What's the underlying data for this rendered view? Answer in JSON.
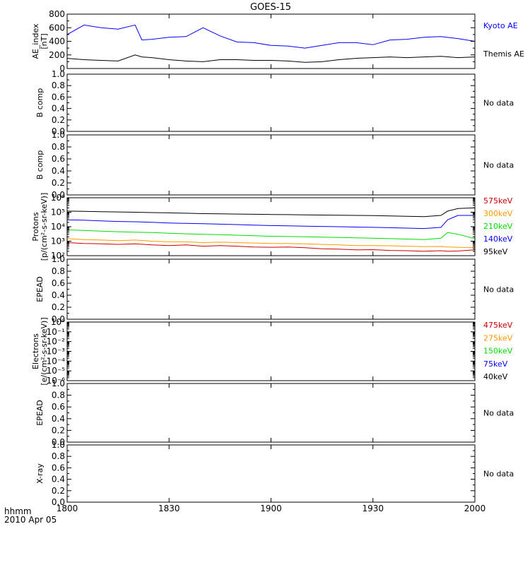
{
  "title": "GOES-15",
  "footer": {
    "time_label": "hhmm",
    "date_label": "2010 Apr 05"
  },
  "colors": {
    "kyoto_ae": "#0000ff",
    "themis_ae": "#000000",
    "p575": "#cc0000",
    "p300": "#ff9900",
    "p210": "#00dd00",
    "p140": "#0000ff",
    "p95": "#000000"
  },
  "chart_data": [
    {
      "type": "line",
      "ylabel": [
        "AE_index",
        "[nT]"
      ],
      "ylim": [
        0,
        800
      ],
      "yticks": [
        "800",
        "600",
        "400",
        "200",
        "0"
      ],
      "x": [
        "1800",
        "1805",
        "1810",
        "1815",
        "1820",
        "1822",
        "1825",
        "1830",
        "1835",
        "1840",
        "1845",
        "1850",
        "1855",
        "1900",
        "1905",
        "1910",
        "1915",
        "1920",
        "1925",
        "1930",
        "1935",
        "1940",
        "1945",
        "1950",
        "1955",
        "2000"
      ],
      "series": [
        {
          "name": "Kyoto AE",
          "color": "#0000ff",
          "values": [
            500,
            640,
            600,
            580,
            640,
            420,
            430,
            460,
            470,
            600,
            480,
            390,
            380,
            340,
            330,
            300,
            340,
            380,
            380,
            350,
            420,
            430,
            460,
            470,
            440,
            400
          ]
        },
        {
          "name": "Themis AE",
          "color": "#000000",
          "values": [
            150,
            130,
            120,
            110,
            200,
            170,
            160,
            130,
            110,
            100,
            130,
            130,
            120,
            120,
            110,
            90,
            100,
            130,
            150,
            160,
            170,
            160,
            170,
            180,
            160,
            170
          ]
        }
      ]
    },
    {
      "type": "line",
      "ylabel": [
        "B comp"
      ],
      "ylim": [
        0,
        1.0
      ],
      "yticks": [
        "1.0",
        "0.8",
        "0.6",
        "0.4",
        "0.2",
        "0.0"
      ],
      "note": "No data"
    },
    {
      "type": "line",
      "ylabel": [
        "B comp"
      ],
      "ylim": [
        0,
        1.0
      ],
      "yticks": [
        "1.0",
        "0.8",
        "0.6",
        "0.4",
        "0.2",
        "0.0"
      ],
      "note": "No data"
    },
    {
      "type": "line",
      "ylabel": [
        "Protons",
        "[p/(cm²-s-sr-keV)]"
      ],
      "ylim": [
        100,
        1000000
      ],
      "log": true,
      "yticks": [
        "10⁶",
        "10⁵",
        "10⁴",
        "10³",
        "10²"
      ],
      "x": [
        "1800",
        "1805",
        "1810",
        "1815",
        "1820",
        "1825",
        "1830",
        "1835",
        "1840",
        "1845",
        "1850",
        "1855",
        "1900",
        "1905",
        "1910",
        "1915",
        "1920",
        "1925",
        "1930",
        "1935",
        "1940",
        "1945",
        "1950",
        "1952",
        "1955",
        "2000"
      ],
      "series": [
        {
          "name": "575keV",
          "color": "#cc0000",
          "values": [
            800,
            700,
            650,
            600,
            650,
            550,
            500,
            550,
            450,
            500,
            450,
            400,
            380,
            400,
            350,
            300,
            280,
            250,
            260,
            230,
            220,
            200,
            220,
            200,
            210,
            250
          ]
        },
        {
          "name": "300keV",
          "color": "#ff9900",
          "values": [
            1500,
            1300,
            1200,
            1100,
            1200,
            1000,
            900,
            900,
            800,
            850,
            800,
            750,
            700,
            700,
            650,
            600,
            550,
            500,
            500,
            480,
            450,
            420,
            430,
            400,
            380,
            350
          ]
        },
        {
          "name": "210keV",
          "color": "#00dd00",
          "values": [
            6000,
            5500,
            5000,
            4500,
            4200,
            4000,
            3500,
            3200,
            3000,
            2800,
            2600,
            2400,
            2200,
            2100,
            2000,
            1900,
            1800,
            1700,
            1600,
            1500,
            1400,
            1300,
            1600,
            4000,
            3000,
            1500
          ]
        },
        {
          "name": "140keV",
          "color": "#0000ff",
          "values": [
            30000,
            28000,
            25000,
            23000,
            22000,
            20000,
            18000,
            17000,
            16000,
            15000,
            14000,
            13000,
            12000,
            11500,
            11000,
            10500,
            10000,
            9500,
            9000,
            8500,
            8000,
            7500,
            9000,
            30000,
            60000,
            60000
          ]
        },
        {
          "name": "95keV",
          "color": "#000000",
          "values": [
            120000,
            115000,
            110000,
            105000,
            100000,
            95000,
            90000,
            85000,
            80000,
            78000,
            75000,
            72000,
            70000,
            68000,
            66000,
            64000,
            62000,
            60000,
            58000,
            55000,
            52000,
            50000,
            60000,
            120000,
            180000,
            200000
          ]
        }
      ]
    },
    {
      "type": "line",
      "ylabel": [
        "EPEAD"
      ],
      "ylim": [
        0,
        1.0
      ],
      "yticks": [
        "1.0",
        "0.8",
        "0.6",
        "0.4",
        "0.2",
        "0.0"
      ],
      "note": "No data"
    },
    {
      "type": "line",
      "ylabel": [
        "Electrons",
        "[e/(cm²-s-sr-keV)]"
      ],
      "ylim": [
        1e-06,
        1
      ],
      "log": true,
      "yticks": [
        "10⁰",
        "10⁻¹",
        "10⁻²",
        "10⁻³",
        "10⁻⁴",
        "10⁻⁵",
        "10⁻⁶"
      ],
      "series": [
        {
          "name": "475keV",
          "color": "#cc0000",
          "values": []
        },
        {
          "name": "275keV",
          "color": "#ff9900",
          "values": []
        },
        {
          "name": "150keV",
          "color": "#00dd00",
          "values": []
        },
        {
          "name": "75keV",
          "color": "#0000ff",
          "values": []
        },
        {
          "name": "40keV",
          "color": "#000000",
          "values": []
        }
      ]
    },
    {
      "type": "line",
      "ylabel": [
        "EPEAD"
      ],
      "ylim": [
        0,
        1.0
      ],
      "yticks": [
        "1.0",
        "0.8",
        "0.6",
        "0.4",
        "0.2",
        "0.0"
      ],
      "note": "No data"
    },
    {
      "type": "line",
      "ylabel": [
        "X-ray"
      ],
      "ylim": [
        0,
        1.0
      ],
      "yticks": [
        "1.0",
        "0.8",
        "0.6",
        "0.4",
        "0.2",
        "0.0"
      ],
      "note": "No data"
    }
  ],
  "xaxis": {
    "ticks": [
      "1800",
      "1830",
      "1900",
      "1930",
      "2000"
    ],
    "range": [
      "1800",
      "2000"
    ]
  }
}
